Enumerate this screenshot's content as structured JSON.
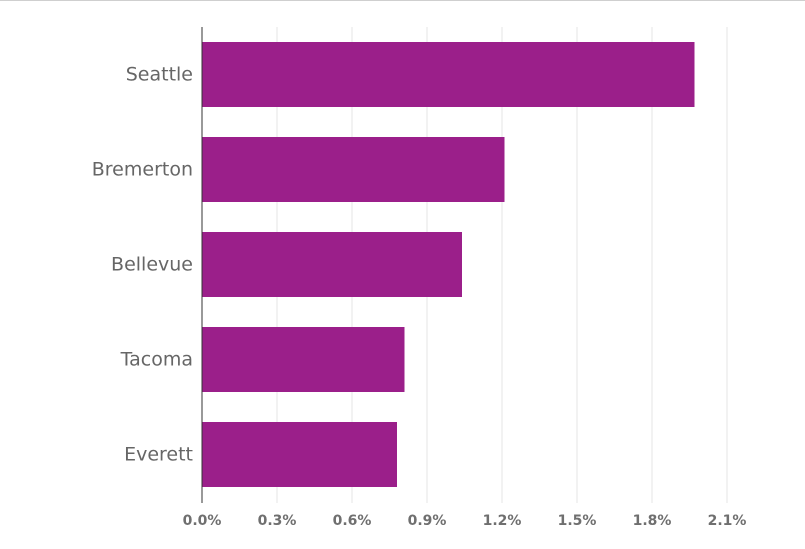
{
  "chart_data": {
    "type": "bar",
    "orientation": "horizontal",
    "categories": [
      "Seattle",
      "Bremerton",
      "Bellevue",
      "Tacoma",
      "Everett"
    ],
    "values": [
      1.97,
      1.21,
      1.04,
      0.81,
      0.78
    ],
    "x_ticks": [
      "0.0%",
      "0.3%",
      "0.6%",
      "0.9%",
      "1.2%",
      "1.5%",
      "1.8%",
      "2.1%"
    ],
    "x_tick_values": [
      0,
      0.3,
      0.6,
      0.9,
      1.2,
      1.5,
      1.8,
      2.1
    ],
    "xlim": [
      0,
      2.1
    ],
    "unit": "%",
    "grid": true,
    "bar_color": "#9b1f8a",
    "title": "",
    "xlabel": "",
    "ylabel": ""
  }
}
